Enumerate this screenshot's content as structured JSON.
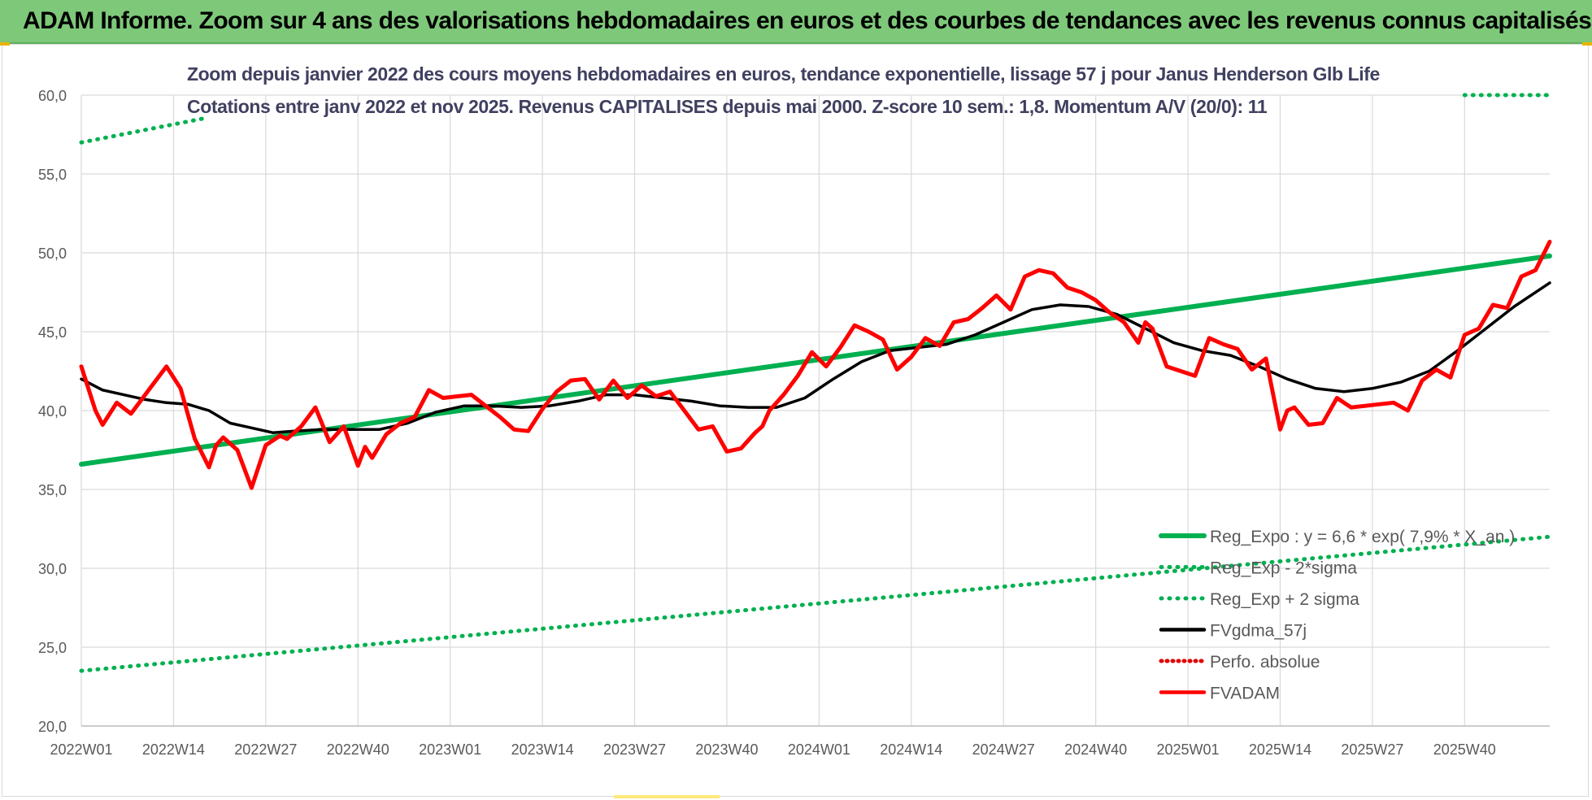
{
  "banner": {
    "title": "ADAM Informe. Zoom sur 4 ans des valorisations hebdomadaires en euros et des courbes de tendances avec les revenus connus capitalisés"
  },
  "colors": {
    "banner_bg": "#7ec87a",
    "reg_expo": "#00b050",
    "fvgdma": "#000000",
    "perfo": "#e00000",
    "fvadam": "#ff0000",
    "grid": "#d9d9d9",
    "axis_text": "#595959"
  },
  "chart_data": {
    "type": "line",
    "title_line1": "Zoom depuis janvier 2022 des cours moyens hebdomadaires en euros, tendance exponentielle, lissage 57 j pour Janus Henderson Glb Life",
    "title_line2": "Cotations entre janv 2022 et nov 2025. Revenus CAPITALISES depuis mai 2000. Z-score 10 sem.: 1,8. Momentum A/V (20/0): 11",
    "ylim": [
      20,
      60
    ],
    "y_ticks": [
      "20,0",
      "25,0",
      "30,0",
      "35,0",
      "40,0",
      "45,0",
      "50,0",
      "55,0",
      "60,0"
    ],
    "y_tick_values": [
      20,
      25,
      30,
      35,
      40,
      45,
      50,
      55,
      60
    ],
    "x_range": [
      0,
      207
    ],
    "x_ticks": [
      "2022W01",
      "2022W14",
      "2022W27",
      "2022W40",
      "2023W01",
      "2023W14",
      "2023W27",
      "2023W40",
      "2024W01",
      "2024W14",
      "2024W27",
      "2024W40",
      "2025W01",
      "2025W14",
      "2025W27",
      "2025W40"
    ],
    "x_tick_values": [
      0,
      13,
      26,
      39,
      52,
      65,
      78,
      91,
      104,
      117,
      130,
      143,
      156,
      169,
      182,
      195
    ],
    "legend": [
      {
        "label": "Reg_Expo : y = 6,6 * exp( 7,9% * X_an )",
        "style": "solid",
        "color": "#00b050"
      },
      {
        "label": "Reg_Exp - 2*sigma",
        "style": "dotted",
        "color": "#00b050"
      },
      {
        "label": "Reg_Exp + 2 sigma",
        "style": "dotted",
        "color": "#00b050"
      },
      {
        "label": "FVgdma_57j",
        "style": "solid",
        "color": "#000000"
      },
      {
        "label": "Perfo. absolue",
        "style": "dotted",
        "color": "#e00000"
      },
      {
        "label": "FVADAM",
        "style": "solid",
        "color": "#ff0000"
      }
    ],
    "series": [
      {
        "name": "Reg_Expo : y = 6,6 * exp( 7,9% * X_an )",
        "x": [
          0,
          207
        ],
        "values": [
          36.6,
          49.8
        ]
      },
      {
        "name": "Reg_Exp - 2*sigma",
        "x": [
          0,
          207
        ],
        "values": [
          23.5,
          32.0
        ]
      },
      {
        "name": "Reg_Exp + 2 sigma",
        "x": [
          0,
          17,
          195,
          207
        ],
        "values": [
          57.0,
          58.5,
          60.0,
          60.0
        ]
      },
      {
        "name": "FVgdma_57j",
        "x": [
          0,
          3,
          6,
          9,
          12,
          15,
          18,
          21,
          24,
          27,
          30,
          34,
          38,
          42,
          46,
          50,
          54,
          58,
          62,
          66,
          70,
          74,
          78,
          82,
          86,
          90,
          94,
          98,
          102,
          106,
          110,
          114,
          118,
          122,
          126,
          130,
          134,
          138,
          142,
          146,
          150,
          154,
          158,
          162,
          166,
          170,
          174,
          178,
          182,
          186,
          190,
          194,
          198,
          202,
          207
        ],
        "values": [
          42.0,
          41.3,
          41.0,
          40.7,
          40.5,
          40.4,
          40.0,
          39.2,
          38.9,
          38.6,
          38.7,
          38.8,
          38.8,
          38.8,
          39.2,
          39.9,
          40.3,
          40.3,
          40.2,
          40.3,
          40.6,
          41.0,
          41.0,
          40.8,
          40.6,
          40.3,
          40.2,
          40.2,
          40.8,
          42.0,
          43.1,
          43.8,
          44.0,
          44.2,
          44.8,
          45.6,
          46.4,
          46.7,
          46.6,
          46.1,
          45.2,
          44.3,
          43.8,
          43.5,
          42.8,
          42.0,
          41.4,
          41.2,
          41.4,
          41.8,
          42.5,
          43.8,
          45.2,
          46.6,
          48.1
        ]
      },
      {
        "name": "Perfo. absolue",
        "x": [],
        "values": []
      },
      {
        "name": "FVADAM",
        "x": [
          0,
          2,
          3,
          5,
          7,
          8,
          10,
          12,
          14,
          16,
          18,
          19,
          20,
          22,
          24,
          26,
          28,
          29,
          30,
          31,
          33,
          35,
          37,
          39,
          40,
          41,
          43,
          45,
          47,
          49,
          51,
          53,
          55,
          57,
          59,
          61,
          63,
          65,
          67,
          69,
          71,
          73,
          75,
          77,
          79,
          81,
          83,
          85,
          87,
          89,
          91,
          93,
          95,
          96,
          97,
          99,
          101,
          103,
          105,
          107,
          109,
          111,
          113,
          115,
          117,
          119,
          121,
          123,
          125,
          127,
          129,
          131,
          133,
          135,
          137,
          139,
          141,
          143,
          145,
          147,
          149,
          150,
          151,
          153,
          155,
          157,
          159,
          161,
          163,
          165,
          167,
          169,
          170,
          171,
          173,
          175,
          177,
          179,
          181,
          183,
          185,
          187,
          189,
          191,
          193,
          195,
          197,
          199,
          201,
          203,
          205,
          207
        ],
        "values": [
          42.8,
          40.0,
          39.1,
          40.5,
          39.8,
          40.4,
          41.6,
          42.8,
          41.4,
          38.2,
          36.4,
          37.8,
          38.3,
          37.5,
          35.1,
          37.8,
          38.4,
          38.2,
          38.6,
          39.0,
          40.2,
          38.0,
          39.0,
          36.5,
          37.7,
          37.0,
          38.5,
          39.2,
          39.6,
          41.3,
          40.8,
          40.9,
          41.0,
          40.3,
          39.6,
          38.8,
          38.7,
          40.1,
          41.2,
          41.9,
          42.0,
          40.7,
          41.9,
          40.8,
          41.6,
          40.9,
          41.2,
          40.0,
          38.8,
          39.0,
          37.4,
          37.6,
          38.6,
          39.0,
          40.0,
          41.0,
          42.2,
          43.7,
          42.8,
          44.0,
          45.4,
          45.0,
          44.5,
          42.6,
          43.4,
          44.6,
          44.1,
          45.6,
          45.8,
          46.5,
          47.3,
          46.4,
          48.5,
          48.9,
          48.7,
          47.8,
          47.5,
          47.0,
          46.2,
          45.6,
          44.3,
          45.6,
          45.2,
          42.8,
          42.5,
          42.2,
          44.6,
          44.2,
          43.9,
          42.6,
          43.3,
          38.8,
          40.0,
          40.2,
          39.1,
          39.2,
          40.8,
          40.2,
          40.3,
          40.4,
          40.5,
          40.0,
          41.9,
          42.6,
          42.1,
          44.8,
          45.2,
          46.7,
          46.5,
          48.5,
          48.9,
          50.7
        ]
      }
    ]
  }
}
